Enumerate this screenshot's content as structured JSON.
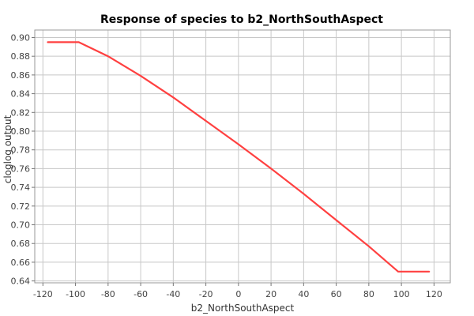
{
  "chart_data": {
    "type": "line",
    "title": "Response of species to b2_NorthSouthAspect",
    "xlabel": "b2_NorthSouthAspect",
    "ylabel": "cloglog output",
    "xlim": [
      -125,
      130
    ],
    "ylim": [
      0.638,
      0.908
    ],
    "x_ticks": [
      -120,
      -100,
      -80,
      -60,
      -40,
      -20,
      0,
      20,
      40,
      60,
      80,
      100,
      120
    ],
    "y_ticks": [
      0.64,
      0.66,
      0.68,
      0.7,
      0.72,
      0.74,
      0.76,
      0.78,
      0.8,
      0.82,
      0.84,
      0.86,
      0.88,
      0.9
    ],
    "x_tick_labels": [
      "-120",
      "-100",
      "-80",
      "-60",
      "-40",
      "-20",
      "0",
      "20",
      "40",
      "60",
      "80",
      "100",
      "120"
    ],
    "y_tick_labels": [
      "0.64",
      "0.66",
      "0.68",
      "0.70",
      "0.72",
      "0.74",
      "0.76",
      "0.78",
      "0.80",
      "0.82",
      "0.84",
      "0.86",
      "0.88",
      "0.90"
    ],
    "grid": true,
    "series": [
      {
        "color": "#ff4040",
        "x": [
          -117,
          -98,
          -80,
          -60,
          -40,
          -20,
          0,
          20,
          40,
          60,
          80,
          98,
          117
        ],
        "y": [
          0.895,
          0.895,
          0.88,
          0.859,
          0.836,
          0.811,
          0.786,
          0.76,
          0.733,
          0.705,
          0.677,
          0.65,
          0.65
        ]
      }
    ]
  }
}
